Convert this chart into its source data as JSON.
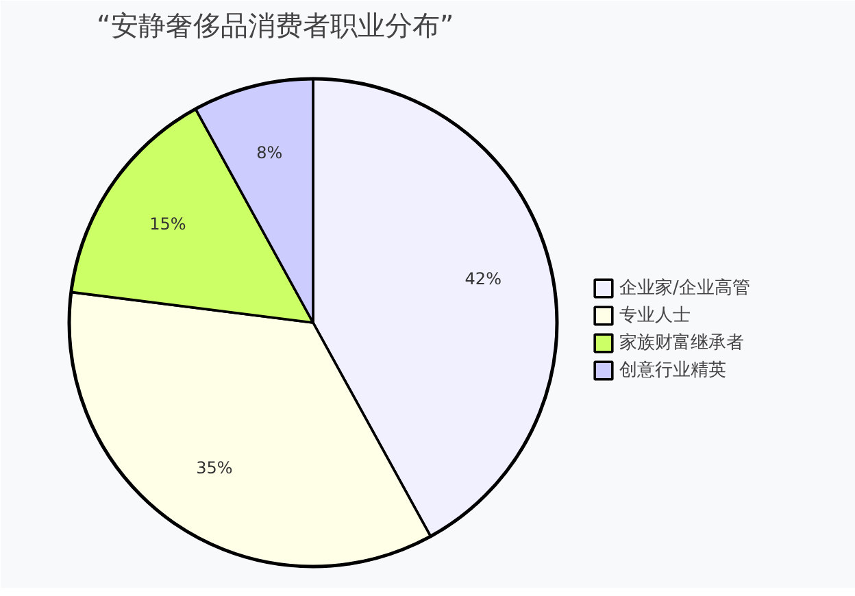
{
  "chart_data": {
    "type": "pie",
    "title": "“安静奢侈品消费者职业分布”",
    "categories": [
      "企业家/企业高管",
      "专业人士",
      "家族财富继承者",
      "创意行业精英"
    ],
    "values": [
      42,
      35,
      15,
      8
    ],
    "colors": [
      "#f0f0ff",
      "#ffffe8",
      "#ccff66",
      "#ccccff"
    ],
    "value_labels": [
      "42%",
      "35%",
      "15%",
      "8%"
    ],
    "legend": "right"
  }
}
